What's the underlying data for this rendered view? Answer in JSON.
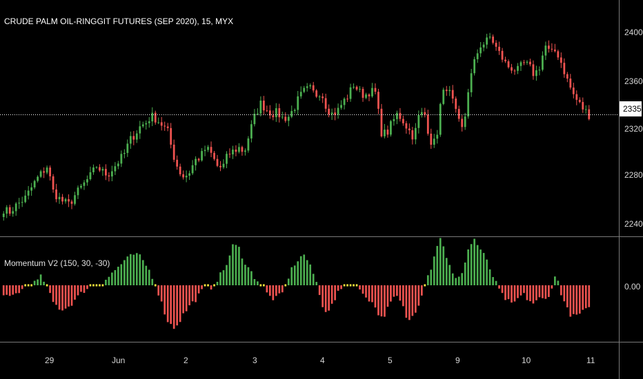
{
  "title": "CRUDE PALM OIL-RINGGIT FUTURES (SEP 2020), 15, MYX",
  "indicator_title": "Momentum V2 (150, 30, -30)",
  "colors": {
    "background": "#000000",
    "up": "#4caf50",
    "down": "#ef5350",
    "neutral": "#ffeb3b",
    "grid_line": "#7a7a7a",
    "axis_text": "#d6d6d6",
    "price_line": "#ffffff"
  },
  "price_axis": {
    "ticks": [
      "2400",
      "2360",
      "2320",
      "2280",
      "2240"
    ],
    "tick_values": [
      2400,
      2360,
      2320,
      2280,
      2240
    ],
    "ylim": [
      2228,
      2436
    ]
  },
  "current_price": {
    "label": "2335",
    "value": 2335
  },
  "indicator_axis": {
    "ticks": [
      "0.00"
    ]
  },
  "time_axis": {
    "labels": [
      "29",
      "Jun",
      "2",
      "3",
      "4",
      "5",
      "9",
      "10",
      "11"
    ]
  },
  "chart_data": [
    {
      "type": "candlestick",
      "title": "CRUDE PALM OIL-RINGGIT FUTURES (SEP 2020), 15, MYX",
      "x_labels": [
        "29",
        "Jun",
        "2",
        "3",
        "4",
        "5",
        "9",
        "10",
        "11"
      ],
      "ylim": [
        2228,
        2436
      ],
      "y_ticks": [
        2240,
        2280,
        2320,
        2360,
        2400
      ],
      "current_price": 2335,
      "close_path": [
        2252,
        2249,
        2254,
        2258,
        2262,
        2270,
        2278,
        2284,
        2290,
        2268,
        2262,
        2258,
        2256,
        2264,
        2270,
        2276,
        2282,
        2290,
        2285,
        2282,
        2288,
        2294,
        2300,
        2312,
        2318,
        2325,
        2328,
        2334,
        2331,
        2326,
        2320,
        2300,
        2286,
        2280,
        2285,
        2295,
        2298,
        2306,
        2300,
        2290,
        2288,
        2300,
        2303,
        2306,
        2302,
        2320,
        2335,
        2345,
        2340,
        2336,
        2337,
        2332,
        2333,
        2340,
        2350,
        2356,
        2358,
        2352,
        2356,
        2342,
        2336,
        2338,
        2346,
        2352,
        2362,
        2355,
        2352,
        2356,
        2354,
        2320,
        2318,
        2328,
        2336,
        2330,
        2322,
        2315,
        2336,
        2335,
        2312,
        2310,
        2350,
        2360,
        2348,
        2330,
        2320,
        2360,
        2380,
        2396,
        2398,
        2404,
        2394,
        2386,
        2378,
        2376,
        2374,
        2380,
        2378,
        2370,
        2378,
        2396,
        2388,
        2392,
        2380,
        2366,
        2354,
        2346,
        2340,
        2335
      ],
      "candle_count": 190
    },
    {
      "type": "bar",
      "title": "Momentum V2 (150, 30, -30)",
      "value_path": [
        -12,
        -14,
        -10,
        -6,
        -3,
        0,
        4,
        10,
        -4,
        -18,
        -24,
        -26,
        -22,
        -16,
        -10,
        -4,
        0,
        2,
        4,
        8,
        14,
        20,
        26,
        30,
        34,
        30,
        22,
        12,
        -2,
        -22,
        -38,
        -46,
        -40,
        -30,
        -22,
        -16,
        -8,
        -2,
        -2,
        6,
        14,
        26,
        44,
        40,
        26,
        16,
        8,
        2,
        -8,
        -14,
        -14,
        -8,
        8,
        22,
        28,
        34,
        20,
        8,
        -18,
        -28,
        -22,
        -10,
        -2,
        4,
        0,
        -6,
        -10,
        -16,
        -24,
        -36,
        -28,
        -16,
        -12,
        -24,
        -40,
        -30,
        -18,
        4,
        16,
        40,
        52,
        30,
        12,
        4,
        18,
        40,
        50,
        40,
        30,
        16,
        2,
        -10,
        -16,
        -22,
        -14,
        -10,
        -16,
        -20,
        -14,
        -16,
        -6,
        12,
        -10,
        -26,
        -34,
        -32,
        -28,
        -26
      ],
      "bar_count": 190,
      "zero_label": "0.00",
      "thresholds": [
        30,
        -30
      ]
    }
  ]
}
